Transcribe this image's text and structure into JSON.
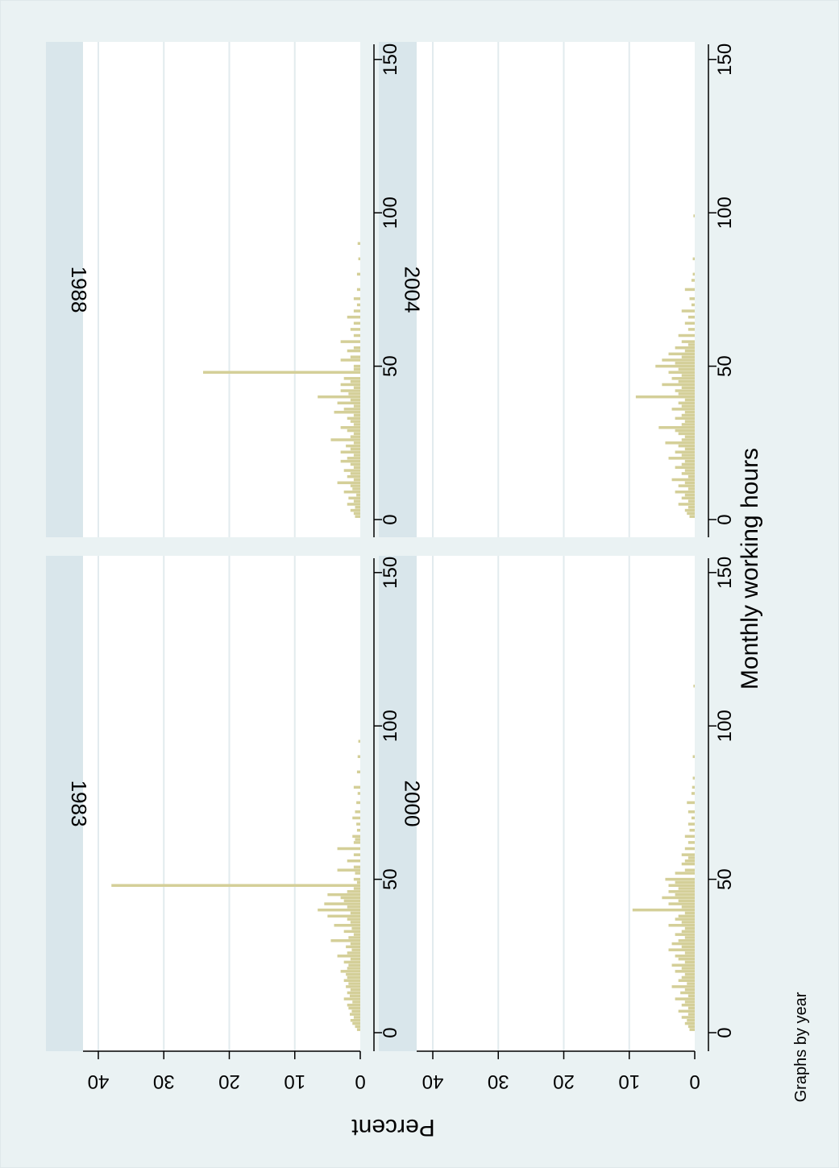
{
  "chart_data": {
    "type": "bar",
    "note_label": "Graphs by year",
    "xlabel": "Monthly working hours",
    "ylabel": "Percent",
    "xlim": [
      0,
      150
    ],
    "ylim": [
      0,
      40
    ],
    "xticks": [
      "0",
      "50",
      "100",
      "150"
    ],
    "yticks": [
      "0",
      "10",
      "20",
      "30",
      "40"
    ],
    "colors": {
      "bar": "#d4cf98",
      "outer_bg": "#eaf2f3",
      "strip": "#d9e6eb",
      "grid": "#e2ebee"
    },
    "panels": [
      {
        "title": "1983",
        "bars": [
          [
            1,
            0.5
          ],
          [
            2,
            0.8
          ],
          [
            3,
            1.2
          ],
          [
            4,
            1.5
          ],
          [
            5,
            1.0
          ],
          [
            6,
            1.6
          ],
          [
            7,
            1.3
          ],
          [
            8,
            1.8
          ],
          [
            9,
            2.0
          ],
          [
            10,
            1.2
          ],
          [
            11,
            2.5
          ],
          [
            12,
            1.6
          ],
          [
            13,
            2.0
          ],
          [
            14,
            1.5
          ],
          [
            15,
            2.2
          ],
          [
            16,
            1.8
          ],
          [
            17,
            2.5
          ],
          [
            18,
            2.0
          ],
          [
            19,
            2.2
          ],
          [
            20,
            3.0
          ],
          [
            21,
            2.0
          ],
          [
            22,
            1.8
          ],
          [
            23,
            2.5
          ],
          [
            24,
            1.5
          ],
          [
            25,
            3.5
          ],
          [
            26,
            2.0
          ],
          [
            27,
            1.3
          ],
          [
            28,
            2.2
          ],
          [
            29,
            1.5
          ],
          [
            30,
            4.5
          ],
          [
            31,
            1.8
          ],
          [
            32,
            1.0
          ],
          [
            33,
            2.5
          ],
          [
            34,
            1.3
          ],
          [
            35,
            4.0
          ],
          [
            36,
            1.5
          ],
          [
            37,
            2.0
          ],
          [
            38,
            5.0
          ],
          [
            39,
            1.5
          ],
          [
            40,
            6.5
          ],
          [
            41,
            2.0
          ],
          [
            42,
            5.5
          ],
          [
            43,
            2.5
          ],
          [
            44,
            3.0
          ],
          [
            45,
            5.0
          ],
          [
            46,
            2.0
          ],
          [
            47,
            1.0
          ],
          [
            48,
            38.0
          ],
          [
            49,
            0.5
          ],
          [
            50,
            1.0
          ],
          [
            52,
            0.8
          ],
          [
            53,
            3.5
          ],
          [
            54,
            1.0
          ],
          [
            56,
            2.0
          ],
          [
            58,
            1.0
          ],
          [
            60,
            3.5
          ],
          [
            62,
            1.0
          ],
          [
            63,
            0.8
          ],
          [
            64,
            1.2
          ],
          [
            66,
            0.5
          ],
          [
            68,
            0.6
          ],
          [
            70,
            1.2
          ],
          [
            72,
            0.8
          ],
          [
            75,
            0.6
          ],
          [
            78,
            0.4
          ],
          [
            80,
            1.0
          ],
          [
            85,
            0.5
          ],
          [
            90,
            0.4
          ],
          [
            95,
            0.3
          ]
        ]
      },
      {
        "title": "1988",
        "bars": [
          [
            1,
            0.8
          ],
          [
            2,
            1.0
          ],
          [
            3,
            1.5
          ],
          [
            4,
            0.8
          ],
          [
            5,
            2.0
          ],
          [
            6,
            1.0
          ],
          [
            7,
            1.8
          ],
          [
            8,
            0.6
          ],
          [
            9,
            2.5
          ],
          [
            10,
            1.2
          ],
          [
            11,
            1.5
          ],
          [
            12,
            3.5
          ],
          [
            13,
            1.0
          ],
          [
            14,
            2.0
          ],
          [
            15,
            1.5
          ],
          [
            16,
            2.5
          ],
          [
            17,
            1.0
          ],
          [
            18,
            1.5
          ],
          [
            19,
            3.0
          ],
          [
            20,
            2.0
          ],
          [
            21,
            1.0
          ],
          [
            22,
            3.0
          ],
          [
            23,
            1.5
          ],
          [
            24,
            2.2
          ],
          [
            25,
            1.0
          ],
          [
            26,
            4.5
          ],
          [
            27,
            1.5
          ],
          [
            28,
            1.0
          ],
          [
            29,
            2.0
          ],
          [
            30,
            3.0
          ],
          [
            31,
            1.0
          ],
          [
            32,
            1.5
          ],
          [
            33,
            2.0
          ],
          [
            34,
            1.0
          ],
          [
            35,
            4.0
          ],
          [
            36,
            2.5
          ],
          [
            37,
            1.0
          ],
          [
            38,
            3.5
          ],
          [
            39,
            1.5
          ],
          [
            40,
            6.5
          ],
          [
            41,
            1.8
          ],
          [
            42,
            3.0
          ],
          [
            43,
            1.0
          ],
          [
            44,
            3.0
          ],
          [
            45,
            1.5
          ],
          [
            46,
            2.5
          ],
          [
            48,
            24.0
          ],
          [
            49,
            1.0
          ],
          [
            50,
            1.0
          ],
          [
            52,
            3.0
          ],
          [
            53,
            1.5
          ],
          [
            55,
            2.0
          ],
          [
            56,
            1.0
          ],
          [
            58,
            3.0
          ],
          [
            60,
            1.0
          ],
          [
            62,
            1.5
          ],
          [
            64,
            1.0
          ],
          [
            66,
            2.0
          ],
          [
            68,
            1.0
          ],
          [
            70,
            0.5
          ],
          [
            72,
            1.0
          ],
          [
            75,
            0.5
          ],
          [
            80,
            0.5
          ],
          [
            85,
            0.3
          ],
          [
            90,
            0.4
          ]
        ]
      },
      {
        "title": "2000",
        "bars": [
          [
            1,
            0.8
          ],
          [
            2,
            1.0
          ],
          [
            3,
            1.5
          ],
          [
            4,
            1.2
          ],
          [
            5,
            2.0
          ],
          [
            6,
            1.0
          ],
          [
            7,
            2.5
          ],
          [
            8,
            1.0
          ],
          [
            9,
            2.0
          ],
          [
            10,
            1.5
          ],
          [
            11,
            3.0
          ],
          [
            12,
            1.0
          ],
          [
            13,
            2.2
          ],
          [
            14,
            1.5
          ],
          [
            15,
            3.5
          ],
          [
            16,
            1.2
          ],
          [
            17,
            2.5
          ],
          [
            18,
            2.0
          ],
          [
            19,
            1.5
          ],
          [
            20,
            3.0
          ],
          [
            21,
            2.0
          ],
          [
            22,
            3.5
          ],
          [
            23,
            1.5
          ],
          [
            24,
            2.5
          ],
          [
            25,
            3.0
          ],
          [
            26,
            1.5
          ],
          [
            27,
            4.0
          ],
          [
            28,
            2.0
          ],
          [
            29,
            3.5
          ],
          [
            30,
            2.5
          ],
          [
            31,
            1.5
          ],
          [
            32,
            3.0
          ],
          [
            33,
            2.0
          ],
          [
            34,
            1.5
          ],
          [
            35,
            4.0
          ],
          [
            36,
            2.0
          ],
          [
            37,
            3.0
          ],
          [
            38,
            2.5
          ],
          [
            39,
            1.5
          ],
          [
            40,
            9.5
          ],
          [
            41,
            2.0
          ],
          [
            42,
            4.0
          ],
          [
            43,
            2.5
          ],
          [
            44,
            5.0
          ],
          [
            45,
            3.0
          ],
          [
            46,
            4.0
          ],
          [
            47,
            2.5
          ],
          [
            48,
            4.0
          ],
          [
            49,
            3.0
          ],
          [
            50,
            4.5
          ],
          [
            52,
            3.0
          ],
          [
            53,
            1.5
          ],
          [
            55,
            2.0
          ],
          [
            56,
            1.5
          ],
          [
            57,
            1.0
          ],
          [
            58,
            2.0
          ],
          [
            60,
            1.5
          ],
          [
            62,
            1.0
          ],
          [
            64,
            1.5
          ],
          [
            66,
            0.8
          ],
          [
            68,
            1.0
          ],
          [
            70,
            0.5
          ],
          [
            72,
            1.0
          ],
          [
            75,
            1.2
          ],
          [
            78,
            0.5
          ],
          [
            80,
            0.4
          ],
          [
            83,
            0.3
          ],
          [
            90,
            0.3
          ],
          [
            113,
            0.2
          ]
        ]
      },
      {
        "title": "2004",
        "bars": [
          [
            1,
            0.8
          ],
          [
            2,
            1.2
          ],
          [
            3,
            1.5
          ],
          [
            4,
            1.0
          ],
          [
            5,
            2.5
          ],
          [
            6,
            1.0
          ],
          [
            7,
            2.0
          ],
          [
            8,
            1.5
          ],
          [
            9,
            3.0
          ],
          [
            10,
            1.0
          ],
          [
            11,
            2.5
          ],
          [
            12,
            1.5
          ],
          [
            13,
            3.5
          ],
          [
            14,
            1.0
          ],
          [
            15,
            2.0
          ],
          [
            16,
            1.5
          ],
          [
            17,
            3.0
          ],
          [
            18,
            2.0
          ],
          [
            19,
            1.5
          ],
          [
            20,
            4.0
          ],
          [
            21,
            2.0
          ],
          [
            22,
            3.0
          ],
          [
            23,
            1.5
          ],
          [
            24,
            2.5
          ],
          [
            25,
            4.5
          ],
          [
            26,
            2.0
          ],
          [
            27,
            1.5
          ],
          [
            28,
            2.5
          ],
          [
            29,
            3.0
          ],
          [
            30,
            5.5
          ],
          [
            31,
            2.0
          ],
          [
            32,
            1.5
          ],
          [
            33,
            3.0
          ],
          [
            34,
            2.0
          ],
          [
            35,
            1.5
          ],
          [
            36,
            3.5
          ],
          [
            37,
            2.0
          ],
          [
            38,
            2.5
          ],
          [
            39,
            1.5
          ],
          [
            40,
            9.0
          ],
          [
            41,
            2.5
          ],
          [
            42,
            3.0
          ],
          [
            43,
            2.0
          ],
          [
            44,
            5.0
          ],
          [
            45,
            2.5
          ],
          [
            46,
            3.5
          ],
          [
            47,
            2.0
          ],
          [
            48,
            4.0
          ],
          [
            49,
            2.5
          ],
          [
            50,
            6.0
          ],
          [
            51,
            3.0
          ],
          [
            52,
            5.0
          ],
          [
            53,
            2.0
          ],
          [
            54,
            4.0
          ],
          [
            55,
            1.5
          ],
          [
            56,
            3.0
          ],
          [
            57,
            1.0
          ],
          [
            58,
            2.0
          ],
          [
            60,
            2.5
          ],
          [
            62,
            1.0
          ],
          [
            64,
            1.5
          ],
          [
            66,
            1.0
          ],
          [
            68,
            2.0
          ],
          [
            70,
            0.5
          ],
          [
            72,
            0.8
          ],
          [
            75,
            1.5
          ],
          [
            78,
            0.5
          ],
          [
            80,
            0.3
          ],
          [
            85,
            0.3
          ],
          [
            99,
            0.2
          ]
        ]
      }
    ]
  }
}
